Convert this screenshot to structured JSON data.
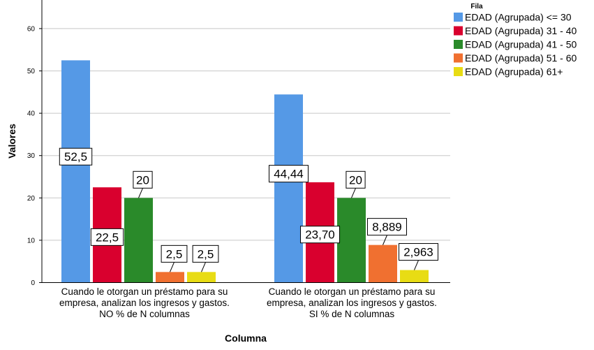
{
  "chart_data": {
    "type": "bar",
    "xlabel": "Columna",
    "ylabel": "Valores",
    "ylim": [
      0,
      67
    ],
    "yticks": [
      0,
      10,
      20,
      30,
      40,
      50,
      60
    ],
    "grid": true,
    "legend_title": "Fila",
    "legend_position": "top-right",
    "categories": [
      [
        "Cuando le otorgan un préstamo para su",
        "empresa, analizan los ingresos y gastos.",
        "NO % de N columnas"
      ],
      [
        "Cuando le otorgan un préstamo para su",
        "empresa, analizan los ingresos y gastos.",
        "SI % de N columnas"
      ]
    ],
    "series": [
      {
        "name": "EDAD (Agrupada) <= 30",
        "color": "#5599E6",
        "values": [
          52.5,
          44.44
        ],
        "labels": [
          "52,5",
          "44,44"
        ]
      },
      {
        "name": "EDAD (Agrupada) 31 - 40",
        "color": "#D9002E",
        "values": [
          22.5,
          23.7
        ],
        "labels": [
          "22,5",
          "23,70"
        ]
      },
      {
        "name": "EDAD (Agrupada) 41 - 50",
        "color": "#2A8A2A",
        "values": [
          20,
          20
        ],
        "labels": [
          "20",
          "20"
        ]
      },
      {
        "name": "EDAD (Agrupada) 51 - 60",
        "color": "#F07030",
        "values": [
          2.5,
          8.889
        ],
        "labels": [
          "2,5",
          "8,889"
        ]
      },
      {
        "name": "EDAD (Agrupada) 61+",
        "color": "#E8DC14",
        "values": [
          2.5,
          2.963
        ],
        "labels": [
          "2,5",
          "2,963"
        ]
      }
    ]
  }
}
